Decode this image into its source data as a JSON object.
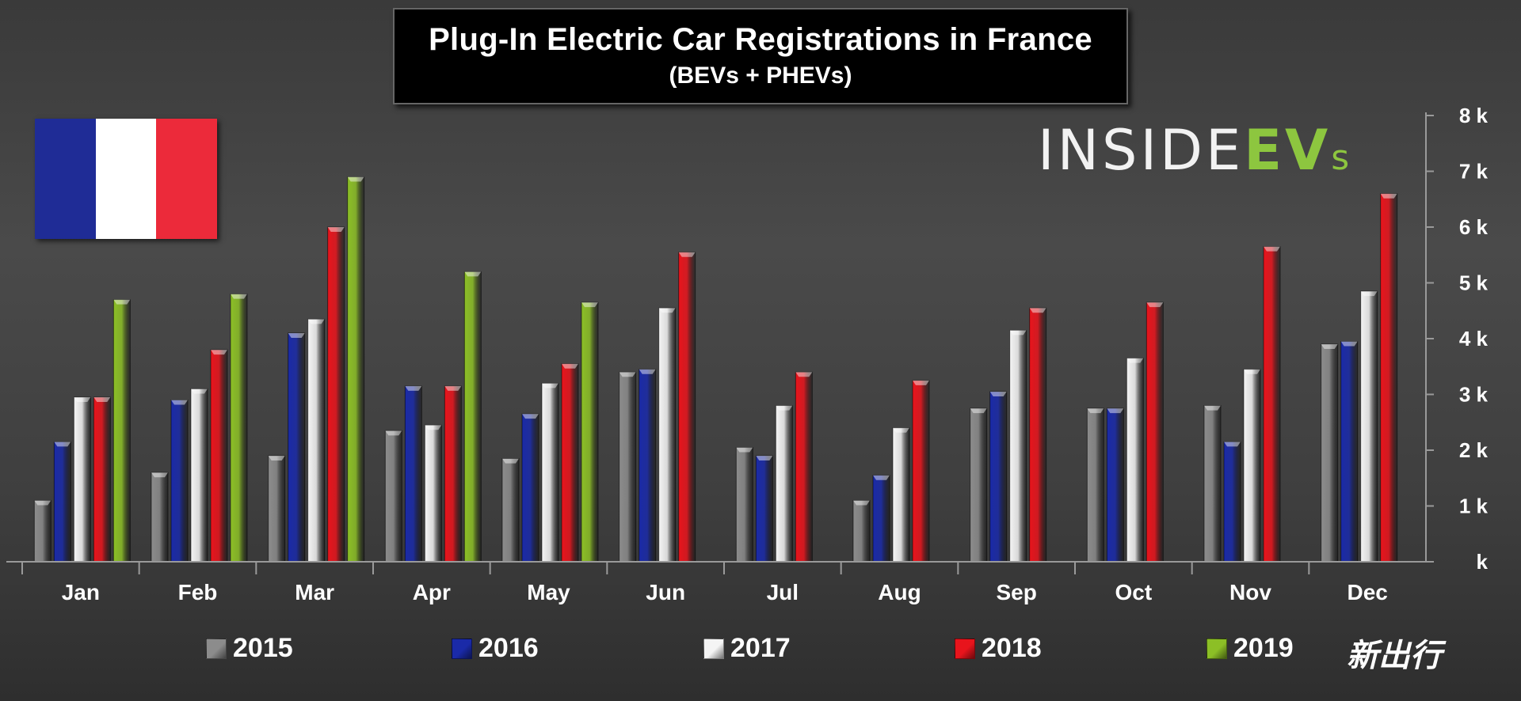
{
  "title": "Plug-In Electric Car Registrations in France",
  "subtitle": "(BEVs + PHEVs)",
  "logo": {
    "inside": "INSIDE",
    "ev": "EV",
    "s": "s"
  },
  "watermark": "新出行",
  "flag_colors": [
    "#1f2c96",
    "#ffffff",
    "#ec2a3a"
  ],
  "chart_data": {
    "type": "bar",
    "categories": [
      "Jan",
      "Feb",
      "Mar",
      "Apr",
      "May",
      "Jun",
      "Jul",
      "Aug",
      "Sep",
      "Oct",
      "Nov",
      "Dec"
    ],
    "series": [
      {
        "name": "2015",
        "color": "#8c8c8c",
        "values": [
          1.1,
          1.6,
          1.9,
          2.35,
          1.85,
          3.4,
          2.05,
          1.1,
          2.75,
          2.75,
          2.8,
          3.9
        ]
      },
      {
        "name": "2016",
        "color": "#1a2aa8",
        "values": [
          2.15,
          2.9,
          4.1,
          3.15,
          2.65,
          3.45,
          1.9,
          1.55,
          3.05,
          2.75,
          2.15,
          3.95
        ]
      },
      {
        "name": "2017",
        "color": "#f4f4f4",
        "values": [
          2.95,
          3.1,
          4.35,
          2.45,
          3.2,
          4.55,
          2.8,
          2.4,
          4.15,
          3.65,
          3.45,
          4.85
        ]
      },
      {
        "name": "2018",
        "color": "#e8141c",
        "values": [
          2.95,
          3.8,
          6.0,
          3.15,
          3.55,
          5.55,
          3.4,
          3.25,
          4.55,
          4.65,
          5.65,
          6.6
        ]
      },
      {
        "name": "2019",
        "color": "#8cbf26",
        "values": [
          4.7,
          4.8,
          6.9,
          5.2,
          4.65,
          null,
          null,
          null,
          null,
          null,
          null,
          null
        ]
      }
    ],
    "y_ticks": [
      "k",
      "1 k",
      "2 k",
      "3 k",
      "4 k",
      "5 k",
      "6 k",
      "7 k",
      "8 k"
    ],
    "ylim": [
      0,
      8
    ],
    "y_axis_side": "right",
    "legend_position": "bottom"
  }
}
